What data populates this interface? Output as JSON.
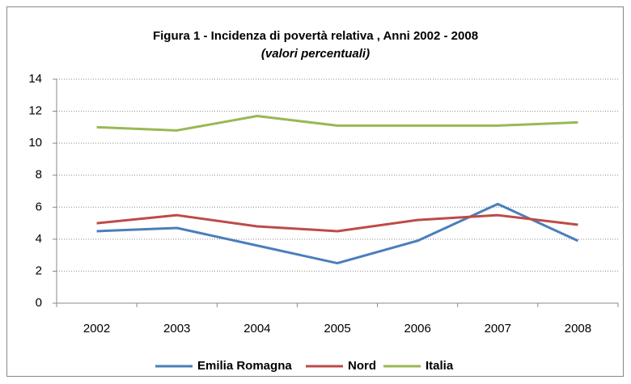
{
  "chart_data": {
    "type": "line",
    "title": "Figura 1 - Incidenza di povertà relativa , Anni 2002 - 2008",
    "subtitle": "(valori percentuali)",
    "categories": [
      "2002",
      "2003",
      "2004",
      "2005",
      "2006",
      "2007",
      "2008"
    ],
    "series": [
      {
        "name": "Emilia Romagna",
        "color": "#4a7ebb",
        "values": [
          4.5,
          4.7,
          3.6,
          2.5,
          3.9,
          6.2,
          3.9
        ]
      },
      {
        "name": "Nord",
        "color": "#be4b48",
        "values": [
          5.0,
          5.5,
          4.8,
          4.5,
          5.2,
          5.5,
          4.9
        ]
      },
      {
        "name": "Italia",
        "color": "#98b954",
        "values": [
          11.0,
          10.8,
          11.7,
          11.1,
          11.1,
          11.1,
          11.3
        ]
      }
    ],
    "ylim": [
      0,
      14
    ],
    "yticks": [
      0,
      2,
      4,
      6,
      8,
      10,
      12,
      14
    ],
    "grid": true,
    "legend": "bottom"
  }
}
